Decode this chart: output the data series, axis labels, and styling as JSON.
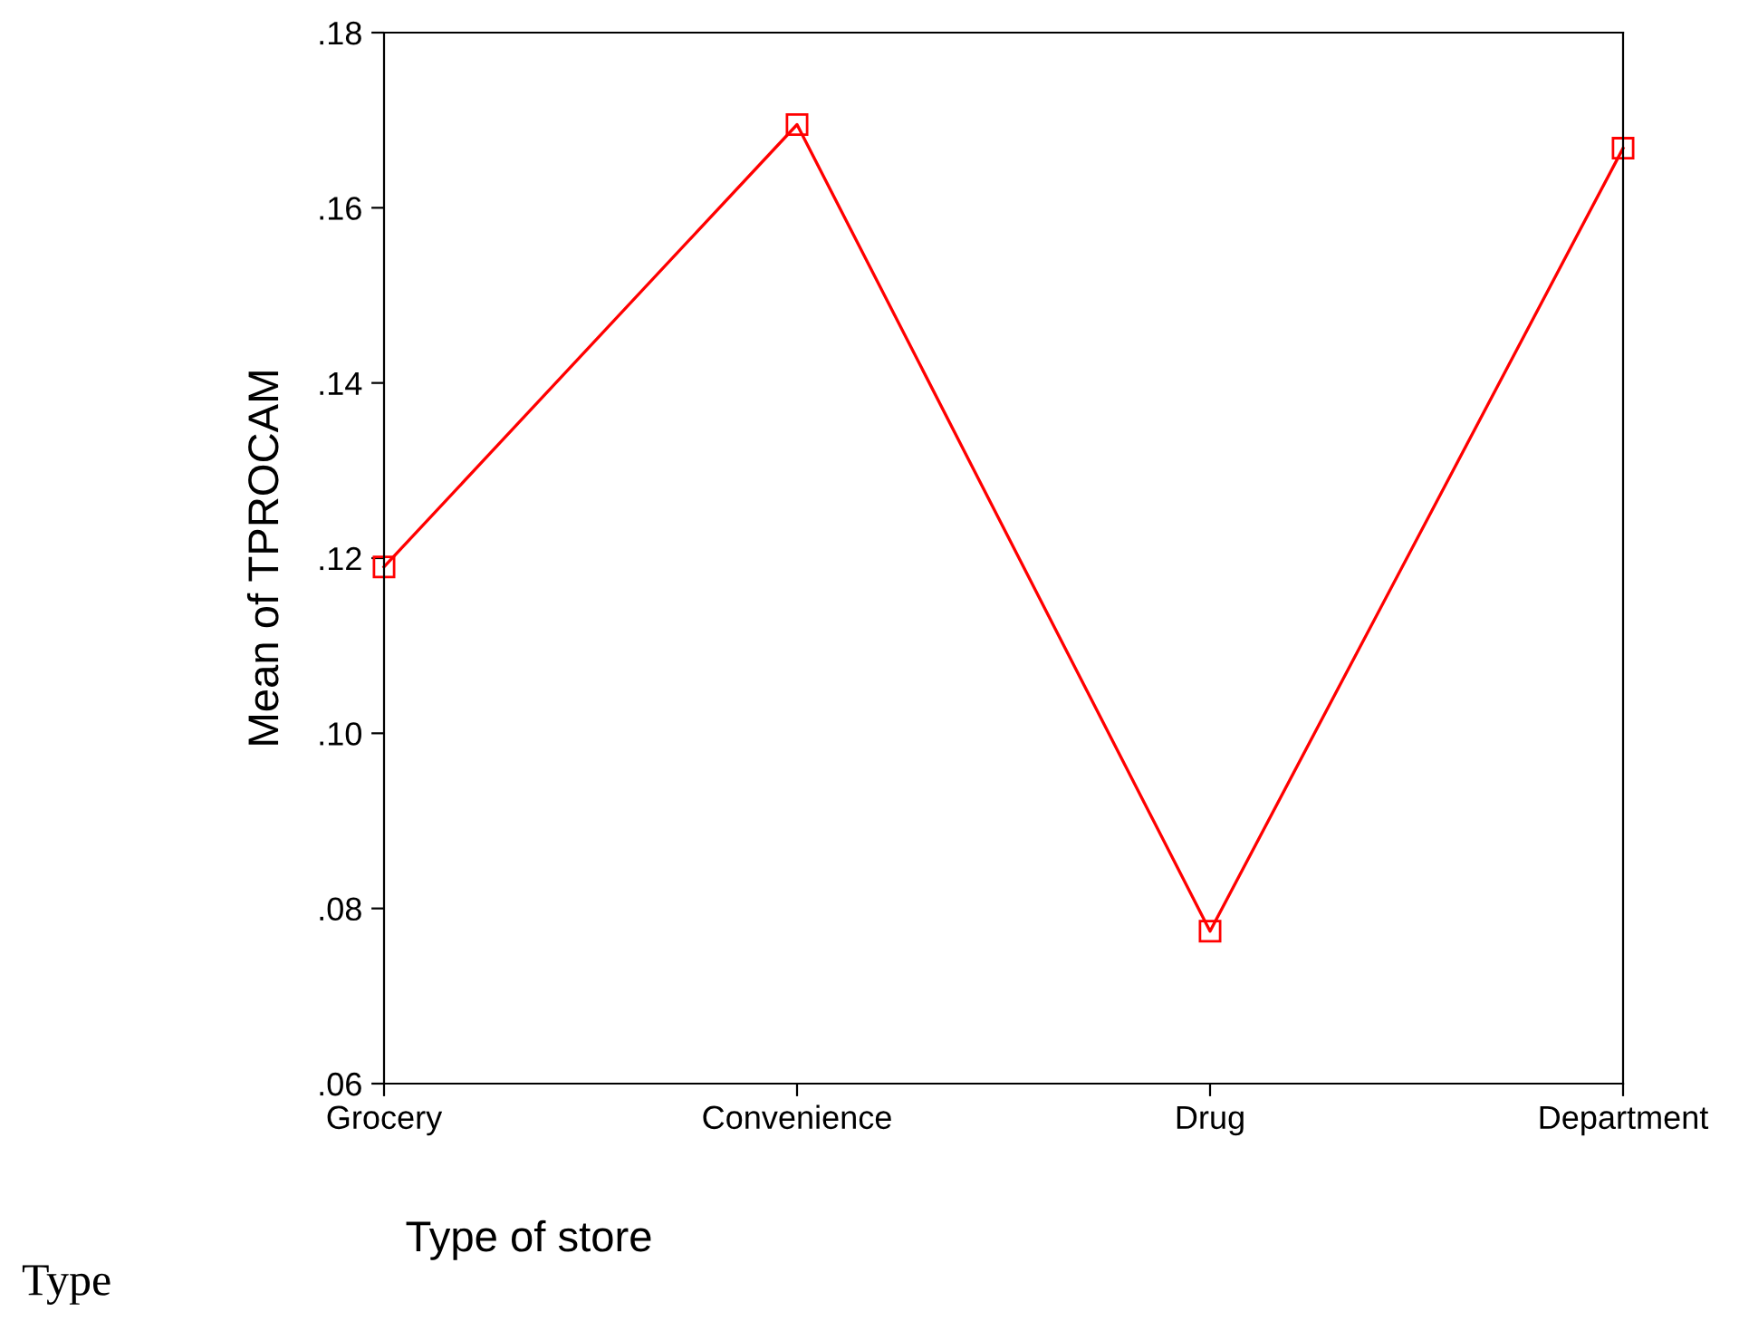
{
  "chart_data": {
    "type": "line",
    "xlabel": "Type of store",
    "ylabel": "Mean of TPROCAM",
    "categories": [
      "Grocery",
      "Convenience",
      "Drug",
      "Department"
    ],
    "series": [
      {
        "color": "#ff0000",
        "values": [
          0.119,
          0.1695,
          0.0774,
          0.1668
        ]
      }
    ],
    "ylim": [
      0.06,
      0.18
    ],
    "yticks": [
      {
        "value": 0.06,
        "label": ".06"
      },
      {
        "value": 0.08,
        "label": ".08"
      },
      {
        "value": 0.1,
        "label": ".10"
      },
      {
        "value": 0.12,
        "label": ".12"
      },
      {
        "value": 0.14,
        "label": ".14"
      },
      {
        "value": 0.16,
        "label": ".16"
      },
      {
        "value": 0.18,
        "label": ".18"
      }
    ],
    "marker": "square",
    "line_style": "solid",
    "grid": false,
    "legend": false,
    "annotations": [
      "Type"
    ]
  }
}
